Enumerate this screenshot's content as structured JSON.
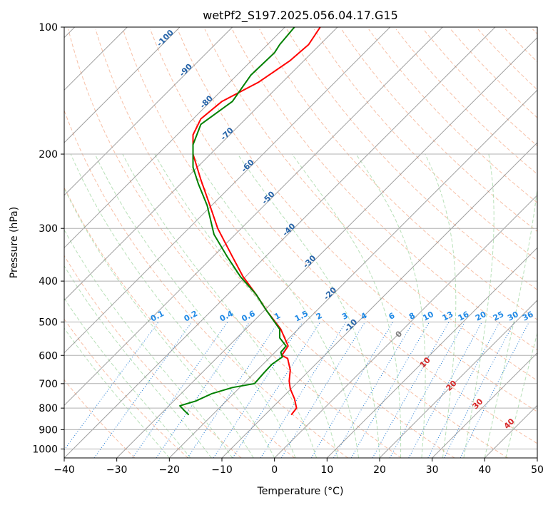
{
  "chart_data": {
    "type": "line",
    "title": "wetPf2_S197.2025.056.04.17.G15",
    "xlabel": "Temperature (°C)",
    "ylabel": "Pressure (hPa)",
    "xlim": [
      -40,
      50
    ],
    "ylim": [
      1050,
      100
    ],
    "y_scale": "log",
    "x_ticks": [
      -40,
      -30,
      -20,
      -10,
      0,
      10,
      20,
      30,
      40,
      50
    ],
    "y_ticks": [
      100,
      200,
      300,
      400,
      500,
      600,
      700,
      800,
      900,
      1000
    ],
    "x_tick_labels": [
      "−40",
      "−30",
      "−20",
      "−10",
      "0",
      "10",
      "20",
      "30",
      "40",
      "50"
    ],
    "y_tick_labels": [
      "100",
      "200",
      "300",
      "400",
      "500",
      "600",
      "700",
      "800",
      "900",
      "1000"
    ],
    "grid": true,
    "series": [
      {
        "color": "#ff0000",
        "points": [
          {
            "t": 3.2,
            "p": 830
          },
          {
            "t": 4.2,
            "p": 800
          },
          {
            "t": 3.8,
            "p": 760
          },
          {
            "t": 3.0,
            "p": 720
          },
          {
            "t": 2.8,
            "p": 690
          },
          {
            "t": 3.0,
            "p": 650
          },
          {
            "t": 2.5,
            "p": 610
          },
          {
            "t": 1.4,
            "p": 600
          },
          {
            "t": 2.6,
            "p": 570
          },
          {
            "t": 1.2,
            "p": 520
          },
          {
            "t": -1.5,
            "p": 470
          },
          {
            "t": -3.5,
            "p": 430
          },
          {
            "t": -6.0,
            "p": 390
          },
          {
            "t": -8.0,
            "p": 350
          },
          {
            "t": -10.8,
            "p": 300
          },
          {
            "t": -12.5,
            "p": 260
          },
          {
            "t": -14.0,
            "p": 230
          },
          {
            "t": -15.5,
            "p": 200
          },
          {
            "t": -15.5,
            "p": 180
          },
          {
            "t": -14.0,
            "p": 165
          },
          {
            "t": -10.0,
            "p": 150
          },
          {
            "t": -3.0,
            "p": 135
          },
          {
            "t": 3.0,
            "p": 120
          },
          {
            "t": 6.5,
            "p": 110
          },
          {
            "t": 8.7,
            "p": 100
          }
        ]
      },
      {
        "color": "#008000",
        "points": [
          {
            "t": -16.3,
            "p": 830
          },
          {
            "t": -17.2,
            "p": 810
          },
          {
            "t": -18.0,
            "p": 790
          },
          {
            "t": -15.0,
            "p": 770
          },
          {
            "t": -12.0,
            "p": 740
          },
          {
            "t": -8.0,
            "p": 715
          },
          {
            "t": -3.8,
            "p": 700
          },
          {
            "t": -2.0,
            "p": 660
          },
          {
            "t": -0.5,
            "p": 630
          },
          {
            "t": 1.5,
            "p": 605
          },
          {
            "t": 1.2,
            "p": 590
          },
          {
            "t": 2.2,
            "p": 570
          },
          {
            "t": 1.0,
            "p": 545
          },
          {
            "t": 1.0,
            "p": 520
          },
          {
            "t": -1.5,
            "p": 470
          },
          {
            "t": -3.5,
            "p": 430
          },
          {
            "t": -6.5,
            "p": 390
          },
          {
            "t": -9.0,
            "p": 350
          },
          {
            "t": -11.5,
            "p": 310
          },
          {
            "t": -12.8,
            "p": 265
          },
          {
            "t": -14.5,
            "p": 235
          },
          {
            "t": -15.5,
            "p": 215
          },
          {
            "t": -15.5,
            "p": 190
          },
          {
            "t": -14.0,
            "p": 170
          },
          {
            "t": -8.0,
            "p": 150
          },
          {
            "t": -4.5,
            "p": 130
          },
          {
            "t": 0.0,
            "p": 115
          },
          {
            "t": 1.0,
            "p": 110
          },
          {
            "t": 3.8,
            "p": 100
          }
        ]
      }
    ],
    "isotherm_labels": [
      "-100",
      "-90",
      "-80",
      "-70",
      "-60",
      "-50",
      "-40",
      "-30",
      "-20",
      "-10"
    ],
    "mixing_ratio_labels": [
      "0.1",
      "0.2",
      "0.4",
      "0.6",
      "1",
      "1.5",
      "2",
      "3",
      "4",
      "6",
      "8",
      "10",
      "13",
      "16",
      "20",
      "25",
      "30",
      "36"
    ],
    "theta_e_labels": [
      "0",
      "10",
      "20",
      "30",
      "40"
    ],
    "colors": {
      "temperature": "#ff0000",
      "dewpoint": "#008000",
      "isotherm": "#808080",
      "dry_adiabat": "#f4a582",
      "moist_adiabat": "#a6d8a6",
      "mixing_ratio": "#1f78d1",
      "theta_e": "#d2b48c",
      "isotherm_label": "#2563a8",
      "mixing_label": "#1e88e5",
      "theta_label": "#d62728"
    }
  }
}
